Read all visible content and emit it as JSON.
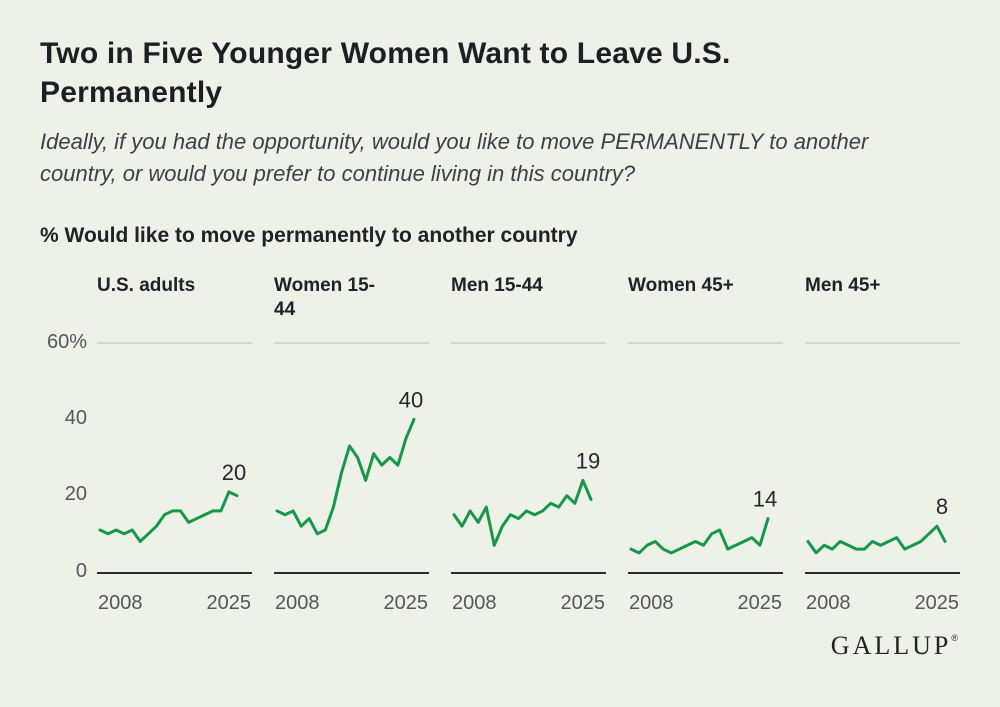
{
  "title": "Two in Five Younger Women Want to Leave U.S. Permanently",
  "subtitle": "Ideally, if you had the opportunity, would you like to move PERMANENTLY to another country, or would you prefer to continue living in this country?",
  "measure_heading": "% Would like to move permanently to another country",
  "brand": "GALLUP",
  "brand_reg": "®",
  "colors": {
    "background": "#EDF1E7",
    "line": "#179848",
    "baseline": "#2a2c2e",
    "gridline": "#c7ccc1",
    "axis_text": "#53575b",
    "label_text": "#26282a"
  },
  "chart_data": {
    "type": "line",
    "title": "% Would like to move permanently to another country",
    "x_tick_labels": [
      "2008",
      "2025"
    ],
    "years": [
      2008,
      2009,
      2010,
      2011,
      2012,
      2013,
      2014,
      2015,
      2016,
      2017,
      2018,
      2019,
      2020,
      2021,
      2022,
      2023,
      2024,
      2025
    ],
    "y_ticks": [
      60,
      40,
      20,
      0
    ],
    "y_tick_labels": [
      "60%",
      "40",
      "20",
      "0"
    ],
    "ylim": [
      0,
      62
    ],
    "grid": "top-rule-only",
    "legend_position": "none",
    "series": [
      {
        "name": "U.S. adults",
        "end_label": "20",
        "values": [
          11,
          10,
          11,
          10,
          11,
          8,
          10,
          12,
          15,
          16,
          16,
          13,
          14,
          15,
          16,
          16,
          21,
          20
        ]
      },
      {
        "name": "Women 15-44",
        "end_label": "40",
        "values": [
          16,
          15,
          16,
          12,
          14,
          10,
          11,
          17,
          26,
          33,
          30,
          24,
          31,
          28,
          30,
          28,
          35,
          40
        ]
      },
      {
        "name": "Men 15-44",
        "end_label": "19",
        "values": [
          15,
          12,
          16,
          13,
          17,
          7,
          12,
          15,
          14,
          16,
          15,
          16,
          18,
          17,
          20,
          18,
          24,
          19
        ]
      },
      {
        "name": "Women 45+",
        "end_label": "14",
        "values": [
          6,
          5,
          7,
          8,
          6,
          5,
          6,
          7,
          8,
          7,
          10,
          11,
          6,
          7,
          8,
          9,
          7,
          14
        ]
      },
      {
        "name": "Men 45+",
        "end_label": "8",
        "values": [
          8,
          5,
          7,
          6,
          8,
          7,
          6,
          6,
          8,
          7,
          8,
          9,
          6,
          7,
          8,
          10,
          12,
          8
        ]
      }
    ]
  }
}
